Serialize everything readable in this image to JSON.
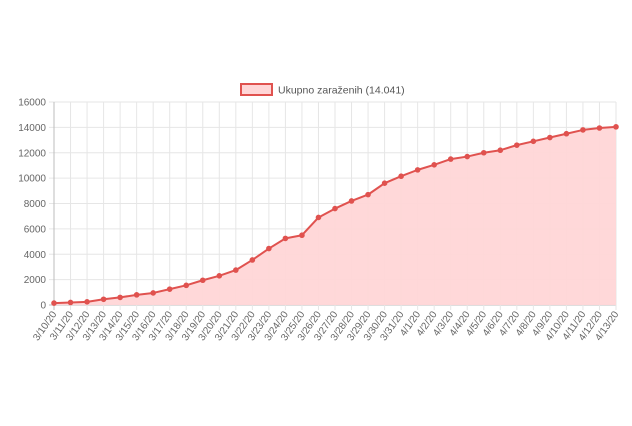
{
  "chart_data": {
    "type": "area",
    "title": "",
    "xlabel": "",
    "ylabel": "",
    "ylim": [
      0,
      16000
    ],
    "yticks": [
      0,
      2000,
      4000,
      6000,
      8000,
      10000,
      12000,
      14000,
      16000
    ],
    "grid": true,
    "legend_position": "top-center",
    "categories": [
      "3/10/20",
      "3/11/20",
      "3/12/20",
      "3/13/20",
      "3/14/20",
      "3/15/20",
      "3/16/20",
      "3/17/20",
      "3/18/20",
      "3/19/20",
      "3/20/20",
      "3/21/20",
      "3/22/20",
      "3/23/20",
      "3/24/20",
      "3/25/20",
      "3/26/20",
      "3/27/20",
      "3/28/20",
      "3/29/20",
      "3/30/20",
      "3/31/20",
      "4/1/20",
      "4/2/20",
      "4/3/20",
      "4/4/20",
      "4/5/20",
      "4/6/20",
      "4/7/20",
      "4/8/20",
      "4/9/20",
      "4/10/20",
      "4/11/20",
      "4/12/20",
      "4/13/20"
    ],
    "series": [
      {
        "name": "Ukupno zaraženih (14.041)",
        "color": "#e0524f",
        "fill": "#ffd6d7",
        "values": [
          150,
          200,
          250,
          450,
          600,
          800,
          950,
          1250,
          1550,
          1950,
          2300,
          2750,
          3550,
          4450,
          5250,
          5500,
          6900,
          7600,
          8200,
          8700,
          9600,
          10150,
          10650,
          11050,
          11500,
          11700,
          12000,
          12200,
          12600,
          12900,
          13200,
          13500,
          13800,
          13950,
          14041
        ]
      }
    ]
  }
}
